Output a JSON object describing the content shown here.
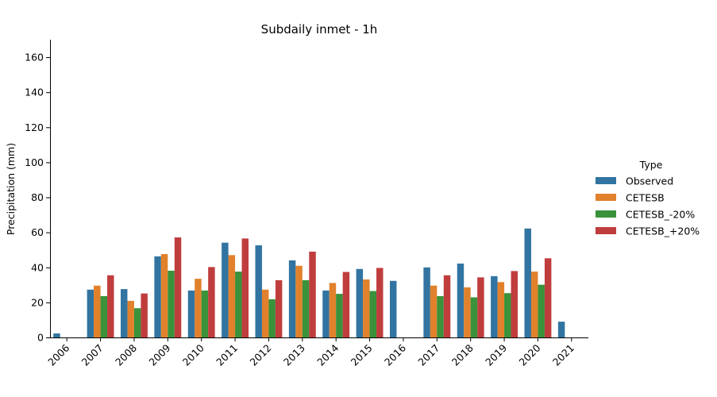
{
  "chart_data": {
    "type": "bar",
    "title": "Subdaily inmet - 1h",
    "xlabel": "",
    "ylabel": "Precipitation (mm)",
    "ylim": [
      0,
      170
    ],
    "yticks": [
      0,
      20,
      40,
      60,
      80,
      100,
      120,
      140,
      160
    ],
    "grid": false,
    "legend_title": "Type",
    "legend_position": "right",
    "categories": [
      "2006",
      "2007",
      "2008",
      "2009",
      "2010",
      "2011",
      "2012",
      "2013",
      "2014",
      "2015",
      "2016",
      "2017",
      "2018",
      "2019",
      "2020",
      "2021"
    ],
    "series": [
      {
        "name": "Observed",
        "color": "#3274a1",
        "values": [
          2.3,
          27.3,
          27.6,
          46.3,
          26.8,
          54.1,
          52.6,
          44.0,
          26.8,
          39.1,
          32.3,
          40.0,
          42.2,
          35.0,
          62.2,
          9.0
        ]
      },
      {
        "name": "CETESB",
        "color": "#e1812c",
        "values": [
          null,
          29.6,
          20.9,
          47.6,
          33.5,
          47.0,
          27.3,
          40.9,
          31.1,
          33.1,
          null,
          29.6,
          28.6,
          31.6,
          37.6,
          null
        ]
      },
      {
        "name": "CETESB_-20%",
        "color": "#3a923a",
        "values": [
          null,
          23.6,
          16.7,
          38.1,
          26.8,
          37.6,
          21.8,
          32.7,
          24.9,
          26.5,
          null,
          23.6,
          22.9,
          25.3,
          30.1,
          null
        ]
      },
      {
        "name": "CETESB_+20%",
        "color": "#c03d3e",
        "values": [
          null,
          35.5,
          25.1,
          57.1,
          40.2,
          56.5,
          32.7,
          49.0,
          37.4,
          39.7,
          null,
          35.5,
          34.3,
          37.9,
          45.2,
          null
        ]
      }
    ]
  }
}
